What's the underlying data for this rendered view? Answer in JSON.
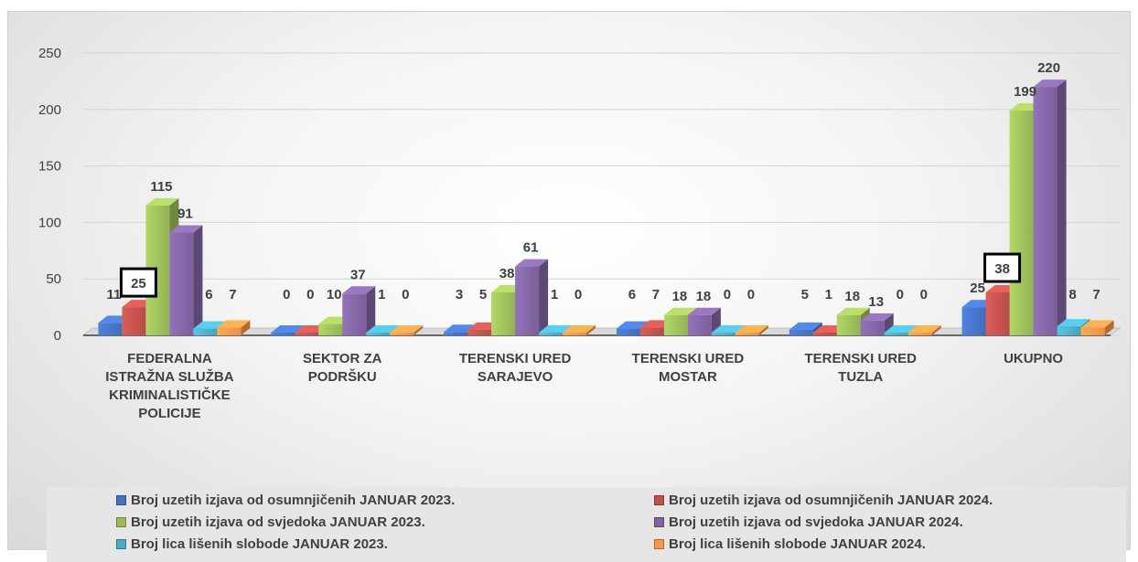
{
  "chart_data": {
    "type": "bar",
    "categories": [
      [
        "FEDERALNA",
        "ISTRAŽNA SLUŽBA",
        "KRIMINALISTIČKE",
        "POLICIJE"
      ],
      [
        "SEKTOR ZA",
        "PODRŠKU"
      ],
      [
        "TERENSKI URED",
        "SARAJEVO"
      ],
      [
        "TERENSKI URED",
        "MOSTAR"
      ],
      [
        "TERENSKI URED",
        "TUZLA"
      ],
      [
        "UKUPNO"
      ]
    ],
    "series": [
      {
        "name": "Broj uzetih izjava od osumnjičenih JANUAR 2023.",
        "color": "#4472C4",
        "values": [
          11,
          0,
          3,
          6,
          5,
          25
        ]
      },
      {
        "name": "Broj uzetih izjava od osumnjičenih JANUAR 2024.",
        "color": "#C0504D",
        "values": [
          25,
          0,
          5,
          7,
          1,
          38
        ]
      },
      {
        "name": "Broj uzetih izjava od svjedoka JANUAR 2023.",
        "color": "#9BBB59",
        "values": [
          115,
          10,
          38,
          18,
          18,
          199
        ]
      },
      {
        "name": "Broj uzetih izjava od svjedoka JANUAR 2024.",
        "color": "#8064A2",
        "values": [
          91,
          37,
          61,
          18,
          13,
          220
        ]
      },
      {
        "name": "Broj lica lišenih slobode JANUAR 2023.",
        "color": "#4BACC6",
        "values": [
          6,
          1,
          1,
          0,
          0,
          8
        ]
      },
      {
        "name": "Broj lica lišenih slobode JANUAR 2024.",
        "color": "#F79646",
        "values": [
          7,
          0,
          0,
          0,
          0,
          7
        ]
      }
    ],
    "yticks": [
      0,
      50,
      100,
      150,
      200,
      250
    ],
    "ylim": [
      0,
      250
    ],
    "grid": true,
    "highlighted_labels": [
      {
        "series": 1,
        "category": 0
      },
      {
        "series": 1,
        "category": 5
      }
    ],
    "legend_position": "bottom"
  }
}
